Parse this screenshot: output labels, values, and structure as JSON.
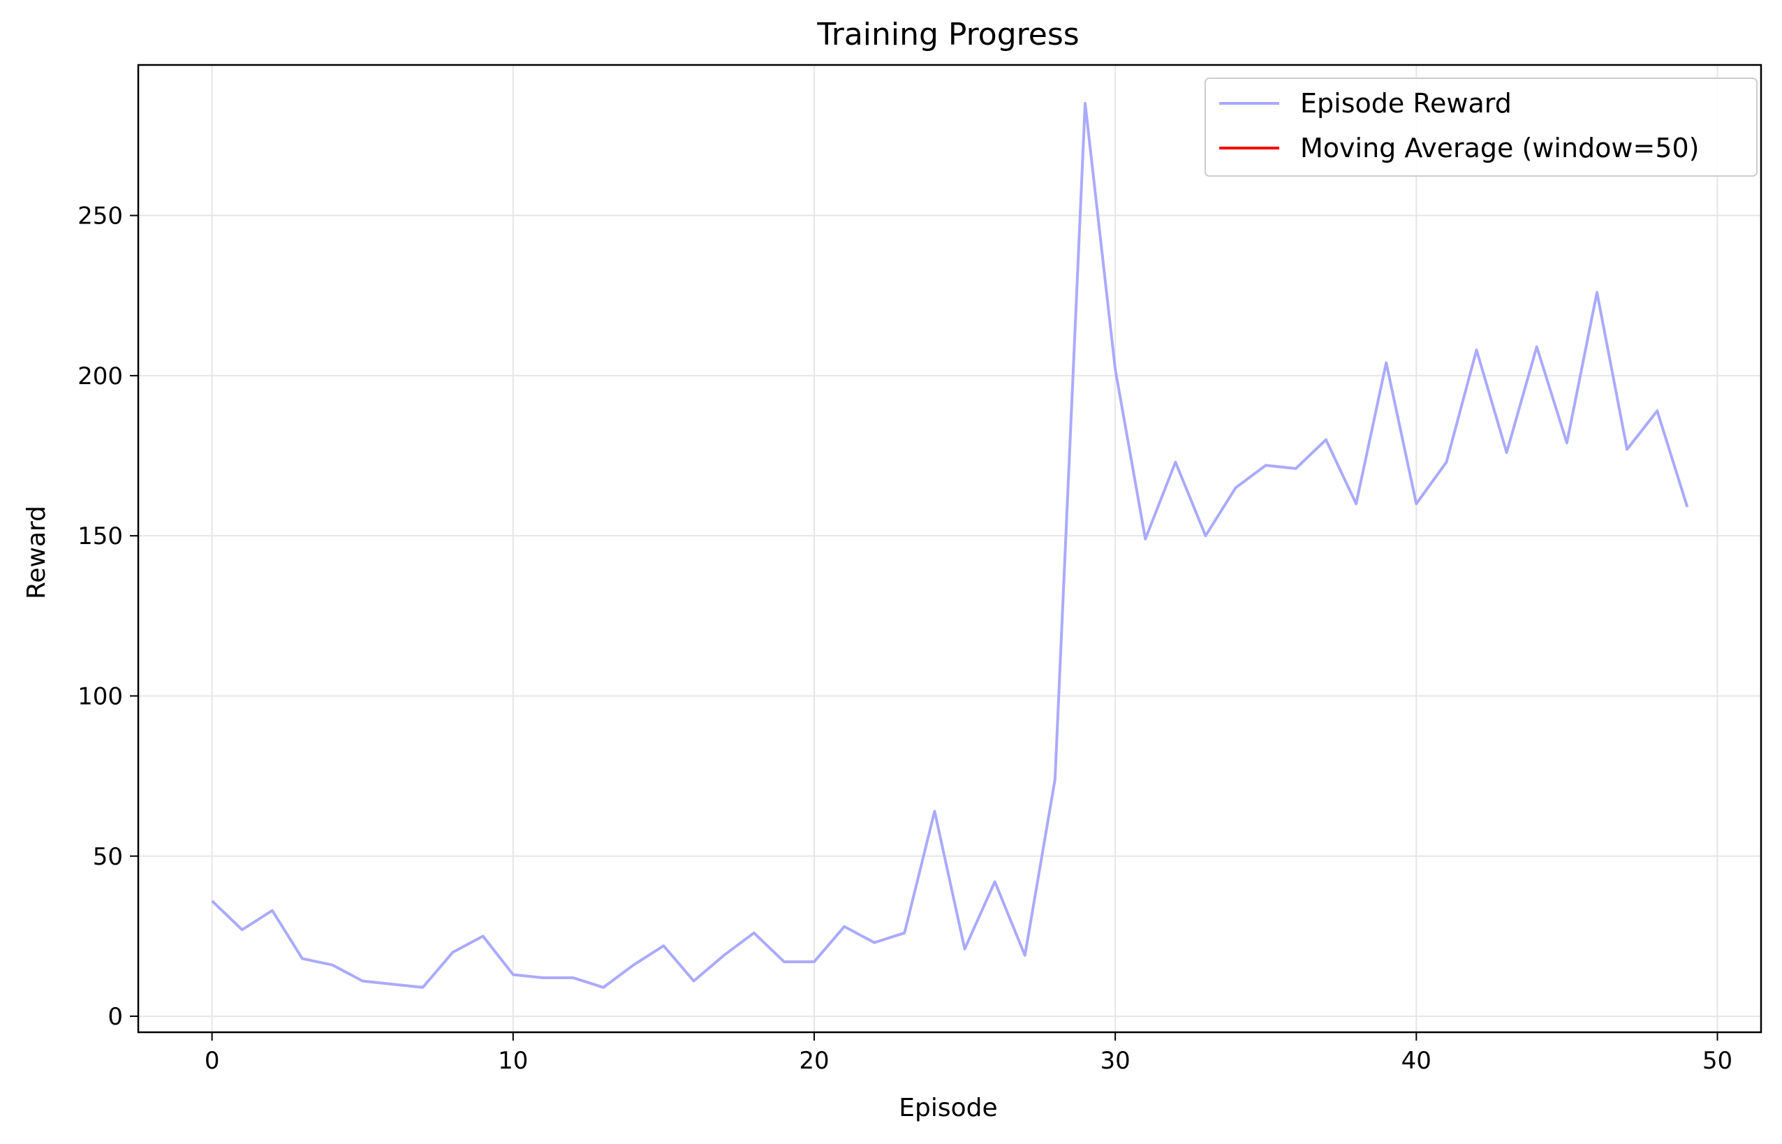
{
  "chart_data": {
    "type": "line",
    "title": "Training Progress",
    "xlabel": "Episode",
    "ylabel": "Reward",
    "xlim": [
      -2.45,
      51.45
    ],
    "ylim": [
      -5,
      297
    ],
    "xticks": [
      0,
      10,
      20,
      30,
      40,
      50
    ],
    "yticks": [
      0,
      50,
      100,
      150,
      200,
      250
    ],
    "grid": true,
    "legend_position": "upper right",
    "series": [
      {
        "name": "Episode Reward",
        "color": "#aaaaff",
        "x": [
          0,
          1,
          2,
          3,
          4,
          5,
          6,
          7,
          8,
          9,
          10,
          11,
          12,
          13,
          14,
          15,
          16,
          17,
          18,
          19,
          20,
          21,
          22,
          23,
          24,
          25,
          26,
          27,
          28,
          29,
          30,
          31,
          32,
          33,
          34,
          35,
          36,
          37,
          38,
          39,
          40,
          41,
          42,
          43,
          44,
          45,
          46,
          47,
          48,
          49
        ],
        "values": [
          36,
          27,
          33,
          18,
          16,
          11,
          10,
          9,
          20,
          25,
          13,
          12,
          12,
          9,
          16,
          22,
          11,
          19,
          26,
          17,
          17,
          28,
          23,
          26,
          64,
          21,
          42,
          19,
          74,
          285,
          202,
          149,
          173,
          150,
          165,
          172,
          171,
          180,
          160,
          204,
          160,
          173,
          208,
          176,
          209,
          179,
          226,
          177,
          189,
          159
        ]
      },
      {
        "name": "Moving Average (window=50)",
        "color": "#ff0000",
        "x": [],
        "values": []
      }
    ]
  }
}
